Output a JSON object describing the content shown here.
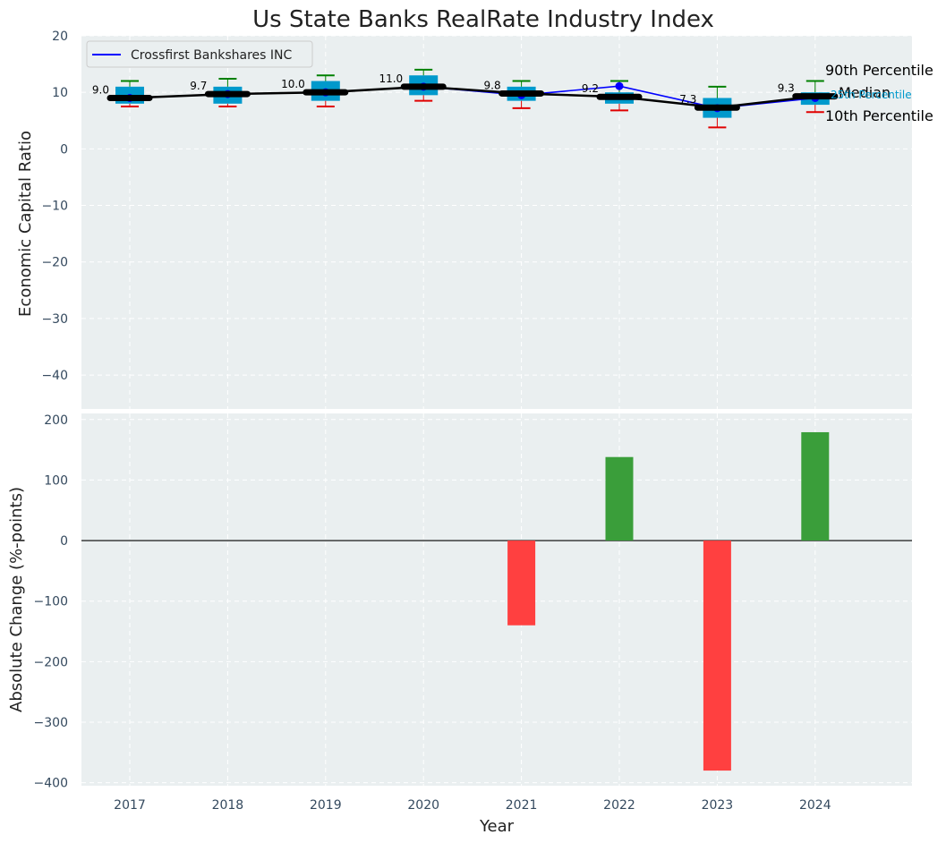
{
  "title": "Us State Banks RealRate Industry Index",
  "colors": {
    "panel_bg": "#eaeff0",
    "grid": "#ffffff",
    "company": "#0000ff",
    "median": "#000000",
    "box": "#0099cc",
    "p90_whisker": "#008000",
    "p10_whisker": "#e00000",
    "bar_positive": "#3a9e3a",
    "bar_negative": "#ff4040"
  },
  "side_labels": {
    "p90": "90th Percentile",
    "median": "Median",
    "p25": "25th Percentile",
    "p10": "10th Percentile"
  },
  "chart_data": [
    {
      "type": "line",
      "title": "Us State Banks RealRate Industry Index",
      "ylabel": "Economic Capital Ratio",
      "ylim": [
        -46,
        20
      ],
      "yticks": [
        20,
        10,
        0,
        -10,
        -20,
        -30,
        -40
      ],
      "grid": true,
      "legend": "top-left",
      "categories": [
        "2017",
        "2018",
        "2019",
        "2020",
        "2021",
        "2022",
        "2023",
        "2024"
      ],
      "series": [
        {
          "name": "Crossfirst Bankshares INC",
          "values": [
            9.0,
            9.7,
            10.0,
            11.0,
            9.5,
            11.1,
            7.2,
            9.0
          ]
        },
        {
          "name": "Median",
          "values": [
            9.0,
            9.7,
            10.0,
            11.0,
            9.8,
            9.2,
            7.3,
            9.3
          ]
        }
      ],
      "median_labels": [
        "9.0",
        "9.7",
        "10.0",
        "11.0",
        "9.8",
        "9.2",
        "7.3",
        "9.3"
      ],
      "percentiles": {
        "p90": [
          12.0,
          12.4,
          13.0,
          14.0,
          12.0,
          12.0,
          11.0,
          12.0
        ],
        "p75": [
          11.0,
          11.0,
          12.0,
          13.0,
          11.0,
          10.0,
          9.0,
          10.0
        ],
        "p25": [
          8.0,
          8.0,
          8.5,
          9.5,
          8.5,
          8.0,
          5.5,
          7.8
        ],
        "p10": [
          7.5,
          7.5,
          7.5,
          8.5,
          7.2,
          6.8,
          3.8,
          6.5
        ]
      }
    },
    {
      "type": "bar",
      "ylabel": "Absolute Change (%-points)",
      "xlabel": "Year",
      "ylim": [
        -405,
        210
      ],
      "yticks": [
        200,
        100,
        0,
        -100,
        -200,
        -300,
        -400
      ],
      "grid": true,
      "categories": [
        "2017",
        "2018",
        "2019",
        "2020",
        "2021",
        "2022",
        "2023",
        "2024"
      ],
      "values": [
        0,
        0,
        0,
        0,
        -140,
        138,
        -380,
        179
      ]
    }
  ]
}
